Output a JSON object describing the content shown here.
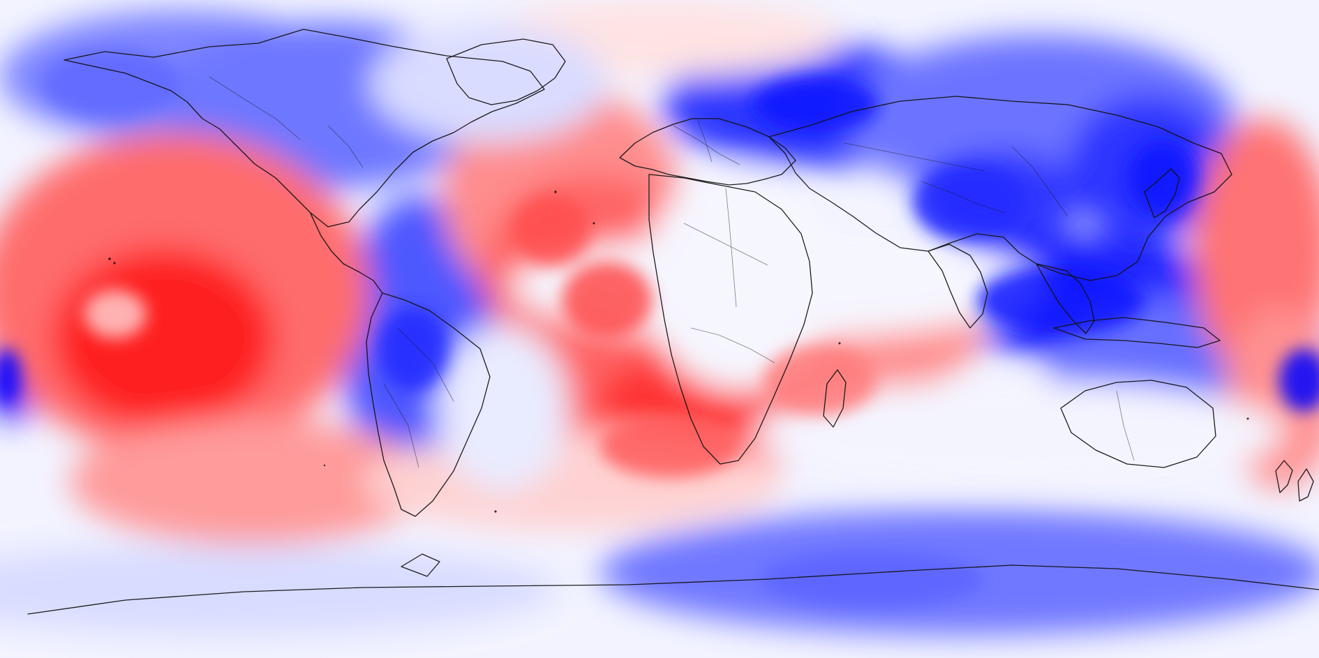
{
  "map": {
    "projection": "equirectangular",
    "layer": "filled-contour-field",
    "palette": {
      "positive_strong": "#ff0000",
      "positive_mid": "#ff5c5c",
      "positive_light": "#ffbdbd",
      "neutral": "#f4f4ff",
      "negative_light": "#bfc3ff",
      "negative_mid": "#6f76ff",
      "negative_strong": "#0000ff",
      "coastline": "#000000"
    },
    "features": {
      "coastlines": true,
      "country_borders": true,
      "legend": false,
      "title": false
    }
  }
}
